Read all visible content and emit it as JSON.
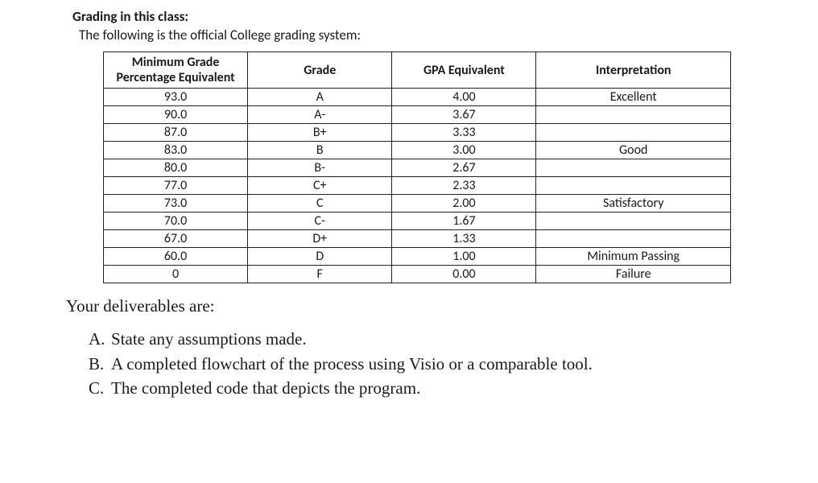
{
  "heading1": "Grading in this class:",
  "heading2": "The following is the official College grading system:",
  "table": {
    "columns": [
      "Minimum Grade Percentage Equivalent",
      "Grade",
      "GPA Equivalent",
      "Interpretation"
    ],
    "rows": [
      {
        "pct": "93.0",
        "grade": "A",
        "gpa": "4.00",
        "interp": "Excellent"
      },
      {
        "pct": "90.0",
        "grade": "A-",
        "gpa": "3.67",
        "interp": ""
      },
      {
        "pct": "87.0",
        "grade": "B+",
        "gpa": "3.33",
        "interp": ""
      },
      {
        "pct": "83.0",
        "grade": "B",
        "gpa": "3.00",
        "interp": "Good"
      },
      {
        "pct": "80.0",
        "grade": "B-",
        "gpa": "2.67",
        "interp": ""
      },
      {
        "pct": "77.0",
        "grade": "C+",
        "gpa": "2.33",
        "interp": ""
      },
      {
        "pct": "73.0",
        "grade": "C",
        "gpa": "2.00",
        "interp": "Satisfactory"
      },
      {
        "pct": "70.0",
        "grade": "C-",
        "gpa": "1.67",
        "interp": ""
      },
      {
        "pct": "67.0",
        "grade": "D+",
        "gpa": "1.33",
        "interp": ""
      },
      {
        "pct": "60.0",
        "grade": "D",
        "gpa": "1.00",
        "interp": "Minimum Passing"
      },
      {
        "pct": "0",
        "grade": "F",
        "gpa": "0.00",
        "interp": "Failure"
      }
    ],
    "border_color": "#222222",
    "font_size": 16
  },
  "deliverables": {
    "title": "Your deliverables are:",
    "items": [
      {
        "letter": "A.",
        "text": "State any assumptions made."
      },
      {
        "letter": "B.",
        "text": "A completed flowchart of the process using Visio or a comparable tool."
      },
      {
        "letter": "C.",
        "text": "The completed code that depicts the program."
      }
    ]
  },
  "colors": {
    "background": "#ffffff",
    "text": "#1a1a1a"
  }
}
